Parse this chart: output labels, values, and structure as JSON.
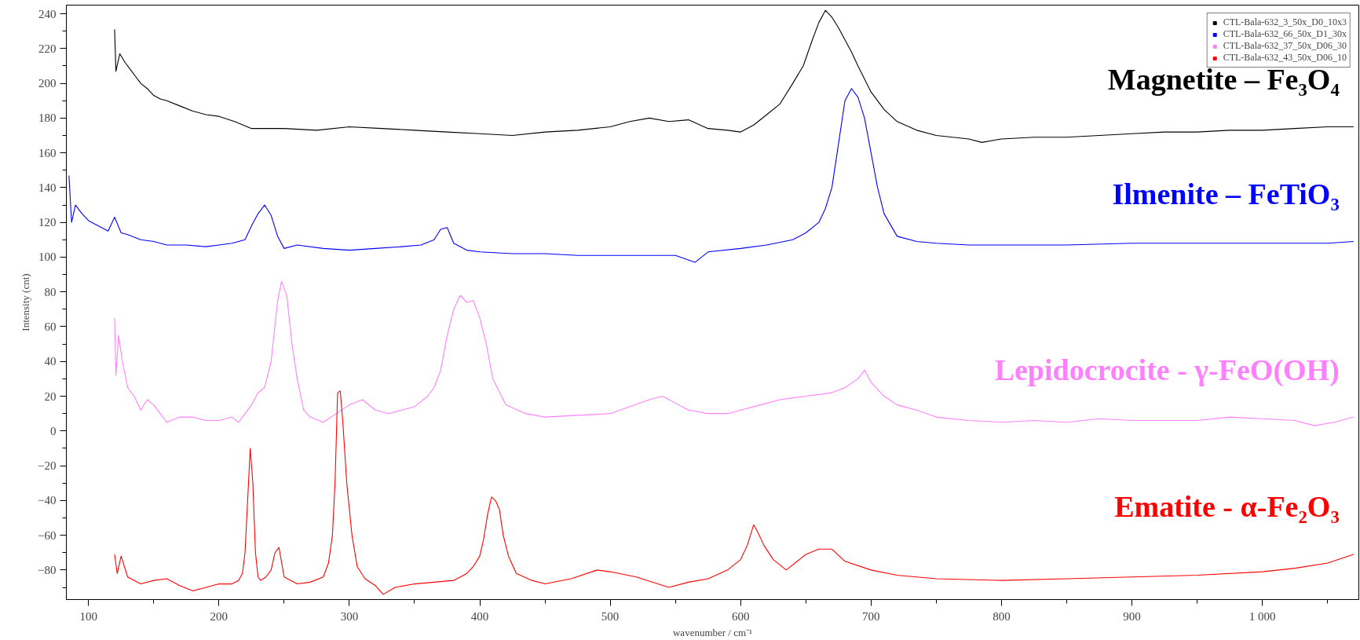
{
  "chart_data": {
    "type": "line",
    "xlabel": "wavenumber / cm⁻¹",
    "ylabel": "Intensity (cnt)",
    "xlim": [
      83,
      1074
    ],
    "ylim": [
      -97,
      245
    ],
    "xticks": [
      100,
      200,
      300,
      400,
      500,
      600,
      700,
      800,
      900,
      {
        "value": 1000,
        "label": "1 000"
      }
    ],
    "yticks": [
      -80,
      -60,
      -40,
      -20,
      0,
      20,
      40,
      60,
      80,
      100,
      120,
      140,
      160,
      180,
      200,
      220,
      240
    ],
    "grid": false,
    "legend": "top right",
    "marker": "none",
    "line_style": "solid",
    "series": [
      {
        "name": "CTL-Bala-632_3_50x_D0_10x3",
        "color": "#000000",
        "x": [
          120,
          121,
          124,
          128,
          132,
          136,
          140,
          145,
          150,
          155,
          160,
          170,
          180,
          190,
          200,
          212,
          225,
          240,
          250,
          275,
          300,
          325,
          350,
          375,
          400,
          425,
          450,
          475,
          500,
          515,
          530,
          545,
          560,
          575,
          590,
          600,
          610,
          620,
          630,
          640,
          648,
          655,
          660,
          665,
          670,
          675,
          680,
          685,
          690,
          700,
          710,
          720,
          735,
          750,
          775,
          785,
          800,
          825,
          850,
          875,
          900,
          925,
          950,
          975,
          1000,
          1025,
          1050,
          1070
        ],
        "values": [
          231,
          207,
          217,
          212,
          208,
          204,
          200,
          197,
          193,
          191,
          190,
          187,
          184,
          182,
          181,
          178,
          174,
          174,
          174,
          173,
          175,
          174,
          173,
          172,
          171,
          170,
          172,
          173,
          175,
          178,
          180,
          178,
          179,
          174,
          173,
          172,
          176,
          182,
          188,
          200,
          210,
          225,
          235,
          242,
          238,
          232,
          225,
          218,
          210,
          195,
          185,
          178,
          173,
          170,
          168,
          166,
          168,
          169,
          169,
          170,
          171,
          172,
          172,
          173,
          173,
          174,
          175,
          175
        ]
      },
      {
        "name": "CTL-Bala-632_66_50x_D1_30x",
        "color": "#0000ff",
        "x": [
          85,
          87,
          90,
          95,
          100,
          105,
          110,
          115,
          120,
          125,
          130,
          140,
          150,
          160,
          175,
          190,
          200,
          210,
          220,
          225,
          230,
          235,
          240,
          245,
          250,
          260,
          280,
          300,
          320,
          340,
          355,
          365,
          370,
          375,
          380,
          390,
          400,
          425,
          450,
          475,
          500,
          525,
          550,
          565,
          575,
          600,
          620,
          640,
          650,
          660,
          665,
          670,
          675,
          680,
          685,
          690,
          695,
          700,
          705,
          710,
          720,
          735,
          750,
          775,
          800,
          850,
          900,
          950,
          1000,
          1050,
          1070
        ],
        "values": [
          147,
          120,
          130,
          125,
          121,
          119,
          117,
          115,
          123,
          114,
          113,
          110,
          109,
          107,
          107,
          106,
          107,
          108,
          110,
          118,
          125,
          130,
          124,
          112,
          105,
          107,
          105,
          104,
          105,
          106,
          107,
          110,
          116,
          117,
          108,
          104,
          103,
          102,
          102,
          101,
          101,
          101,
          101,
          97,
          103,
          105,
          107,
          110,
          114,
          120,
          128,
          140,
          165,
          190,
          197,
          192,
          180,
          160,
          140,
          125,
          112,
          109,
          108,
          107,
          107,
          107,
          108,
          108,
          108,
          108,
          109
        ]
      },
      {
        "name": "CTL-Bala-632_37_50x_D06_30",
        "color": "#ff80ff",
        "x": [
          120,
          121,
          123,
          126,
          130,
          135,
          140,
          145,
          150,
          155,
          160,
          170,
          180,
          190,
          200,
          210,
          215,
          220,
          225,
          230,
          235,
          240,
          245,
          248,
          252,
          256,
          260,
          265,
          270,
          280,
          290,
          300,
          310,
          320,
          330,
          340,
          350,
          360,
          365,
          370,
          375,
          380,
          385,
          390,
          395,
          400,
          405,
          410,
          420,
          435,
          450,
          475,
          500,
          515,
          530,
          540,
          550,
          560,
          575,
          590,
          600,
          615,
          630,
          650,
          670,
          680,
          690,
          695,
          700,
          710,
          720,
          735,
          750,
          775,
          800,
          825,
          850,
          875,
          900,
          925,
          950,
          975,
          1000,
          1025,
          1040,
          1055,
          1070
        ],
        "values": [
          65,
          32,
          55,
          40,
          25,
          20,
          12,
          18,
          15,
          10,
          5,
          8,
          8,
          6,
          6,
          8,
          5,
          10,
          15,
          22,
          25,
          40,
          75,
          86,
          78,
          50,
          30,
          12,
          8,
          5,
          10,
          15,
          18,
          12,
          10,
          12,
          14,
          20,
          25,
          35,
          55,
          70,
          78,
          74,
          75,
          65,
          50,
          30,
          15,
          10,
          8,
          9,
          10,
          14,
          18,
          20,
          16,
          12,
          10,
          10,
          12,
          15,
          18,
          20,
          22,
          25,
          30,
          35,
          28,
          20,
          15,
          12,
          8,
          6,
          5,
          6,
          5,
          7,
          6,
          6,
          6,
          8,
          7,
          6,
          3,
          5,
          8
        ]
      },
      {
        "name": "CTL-Bala-632_43_50x_D06_10",
        "color": "#ff0000",
        "x": [
          120,
          122,
          125,
          130,
          140,
          150,
          160,
          170,
          180,
          190,
          200,
          210,
          215,
          218,
          220,
          222,
          224,
          226,
          228,
          230,
          232,
          236,
          240,
          243,
          246,
          250,
          260,
          270,
          280,
          284,
          287,
          289,
          291,
          293,
          295,
          298,
          302,
          306,
          312,
          320,
          326,
          335,
          350,
          365,
          380,
          390,
          395,
          400,
          403,
          406,
          409,
          412,
          415,
          418,
          422,
          428,
          440,
          450,
          470,
          490,
          500,
          520,
          545,
          560,
          575,
          590,
          600,
          605,
          610,
          613,
          618,
          625,
          635,
          650,
          660,
          670,
          680,
          700,
          720,
          750,
          800,
          850,
          900,
          950,
          1000,
          1025,
          1050,
          1070
        ],
        "values": [
          -71,
          -82,
          -72,
          -84,
          -88,
          -86,
          -85,
          -89,
          -92,
          -90,
          -88,
          -88,
          -86,
          -82,
          -70,
          -40,
          -10,
          -30,
          -70,
          -84,
          -86,
          -84,
          -80,
          -70,
          -67,
          -84,
          -88,
          -87,
          -84,
          -76,
          -60,
          -30,
          22,
          23,
          5,
          -30,
          -60,
          -78,
          -85,
          -89,
          -94,
          -90,
          -88,
          -87,
          -86,
          -82,
          -78,
          -72,
          -62,
          -48,
          -38,
          -40,
          -45,
          -60,
          -72,
          -82,
          -86,
          -88,
          -85,
          -80,
          -81,
          -84,
          -90,
          -87,
          -85,
          -80,
          -74,
          -66,
          -54,
          -58,
          -66,
          -74,
          -80,
          -71,
          -68,
          -68,
          -75,
          -80,
          -83,
          -85,
          -86,
          -85,
          -84,
          -83,
          -81,
          -79,
          -76,
          -71
        ]
      }
    ],
    "annotations": [
      "Magnetite – Fe₃O₄",
      "Ilmenite – FeTiO₃",
      "Lepidocrocite - γ-FeO(OH)",
      "Ematite - α-Fe₂O₃"
    ]
  }
}
